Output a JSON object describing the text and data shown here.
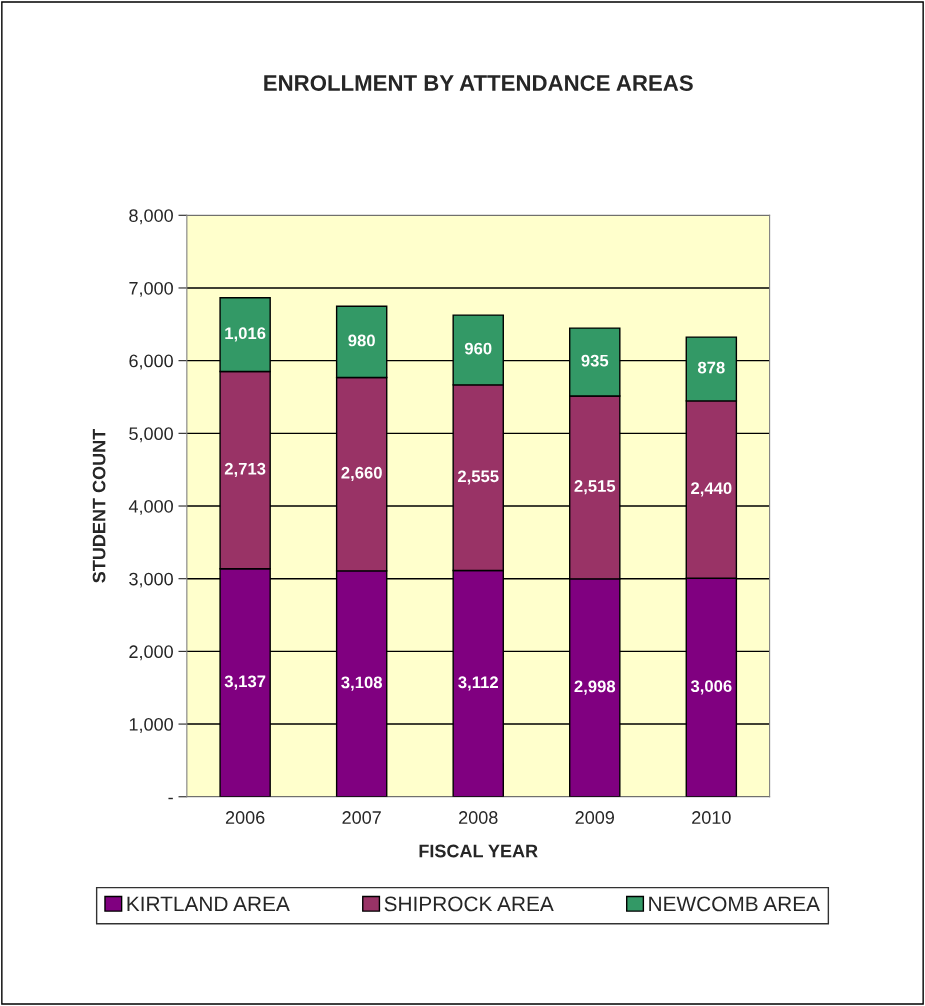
{
  "chart_data": {
    "type": "bar",
    "title": "ENROLLMENT BY ATTENDANCE AREAS",
    "xlabel": "FISCAL YEAR",
    "ylabel": "STUDENT COUNT",
    "categories": [
      "2006",
      "2007",
      "2008",
      "2009",
      "2010"
    ],
    "series": [
      {
        "name": "KIRTLAND AREA",
        "color": "#800080",
        "values": [
          3137,
          3108,
          3112,
          2998,
          3006
        ],
        "value_labels": [
          "3,137",
          "3,108",
          "3,112",
          "2,998",
          "3,006"
        ]
      },
      {
        "name": "SHIPROCK AREA",
        "color": "#993366",
        "values": [
          2713,
          2660,
          2555,
          2515,
          2440
        ],
        "value_labels": [
          "2,713",
          "2,660",
          "2,555",
          "2,515",
          "2,440"
        ]
      },
      {
        "name": "NEWCOMB AREA",
        "color": "#339966",
        "values": [
          1016,
          980,
          960,
          935,
          878
        ],
        "value_labels": [
          "1,016",
          "980",
          "960",
          "935",
          "878"
        ]
      }
    ],
    "stacked": true,
    "ylim": [
      0,
      8000
    ],
    "yticks": [
      {
        "value": 0,
        "label": "-"
      },
      {
        "value": 1000,
        "label": "1,000"
      },
      {
        "value": 2000,
        "label": "2,000"
      },
      {
        "value": 3000,
        "label": "3,000"
      },
      {
        "value": 4000,
        "label": "4,000"
      },
      {
        "value": 5000,
        "label": "5,000"
      },
      {
        "value": 6000,
        "label": "6,000"
      },
      {
        "value": 7000,
        "label": "7,000"
      },
      {
        "value": 8000,
        "label": "8,000"
      }
    ],
    "grid": "y",
    "legend": "bottom"
  }
}
